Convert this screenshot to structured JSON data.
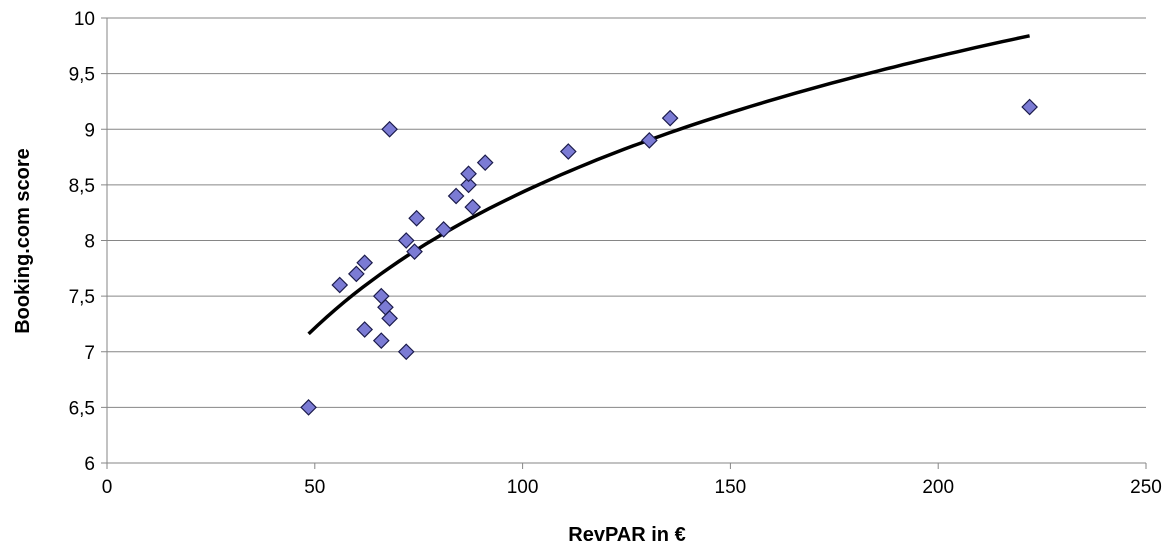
{
  "chart_data": {
    "type": "scatter",
    "title": "",
    "xlabel": "RevPAR in €",
    "ylabel": "Booking.com score",
    "xlim": [
      0,
      250
    ],
    "ylim": [
      6,
      10
    ],
    "x_ticks": [
      0,
      50,
      100,
      150,
      200,
      250
    ],
    "y_ticks": [
      6,
      6.5,
      7,
      7.5,
      8,
      8.5,
      9,
      9.5,
      10
    ],
    "x_tick_labels": [
      "0",
      "50",
      "100",
      "150",
      "200",
      "250"
    ],
    "y_tick_labels": [
      "6",
      "6,5",
      "7",
      "7,5",
      "8",
      "8,5",
      "9",
      "9,5",
      "10"
    ],
    "grid": "horizontal",
    "legend": "none",
    "marker": "diamond",
    "colors": {
      "marker_fill": "#7B7BD4",
      "marker_stroke": "#1a1a4a",
      "trendline": "#000000",
      "grid": "#868686"
    },
    "points": [
      {
        "x": 48.5,
        "y": 6.5
      },
      {
        "x": 56,
        "y": 7.6
      },
      {
        "x": 60,
        "y": 7.7
      },
      {
        "x": 62,
        "y": 7.8
      },
      {
        "x": 62,
        "y": 7.2
      },
      {
        "x": 66,
        "y": 7.5
      },
      {
        "x": 67,
        "y": 7.4
      },
      {
        "x": 66,
        "y": 7.1
      },
      {
        "x": 68,
        "y": 7.3
      },
      {
        "x": 68,
        "y": 9.0
      },
      {
        "x": 72,
        "y": 8.0
      },
      {
        "x": 72,
        "y": 7.0
      },
      {
        "x": 74,
        "y": 7.9
      },
      {
        "x": 74.5,
        "y": 8.2
      },
      {
        "x": 81,
        "y": 8.1
      },
      {
        "x": 84,
        "y": 8.4
      },
      {
        "x": 87,
        "y": 8.5
      },
      {
        "x": 87,
        "y": 8.6
      },
      {
        "x": 88,
        "y": 8.3
      },
      {
        "x": 91,
        "y": 8.7
      },
      {
        "x": 111,
        "y": 8.8
      },
      {
        "x": 130.5,
        "y": 8.9
      },
      {
        "x": 135.5,
        "y": 9.1
      },
      {
        "x": 222,
        "y": 9.2
      }
    ],
    "trendline": {
      "type": "logarithmic",
      "x_range": [
        48.5,
        222
      ],
      "y_at_range": [
        7.16,
        9.84
      ]
    }
  }
}
